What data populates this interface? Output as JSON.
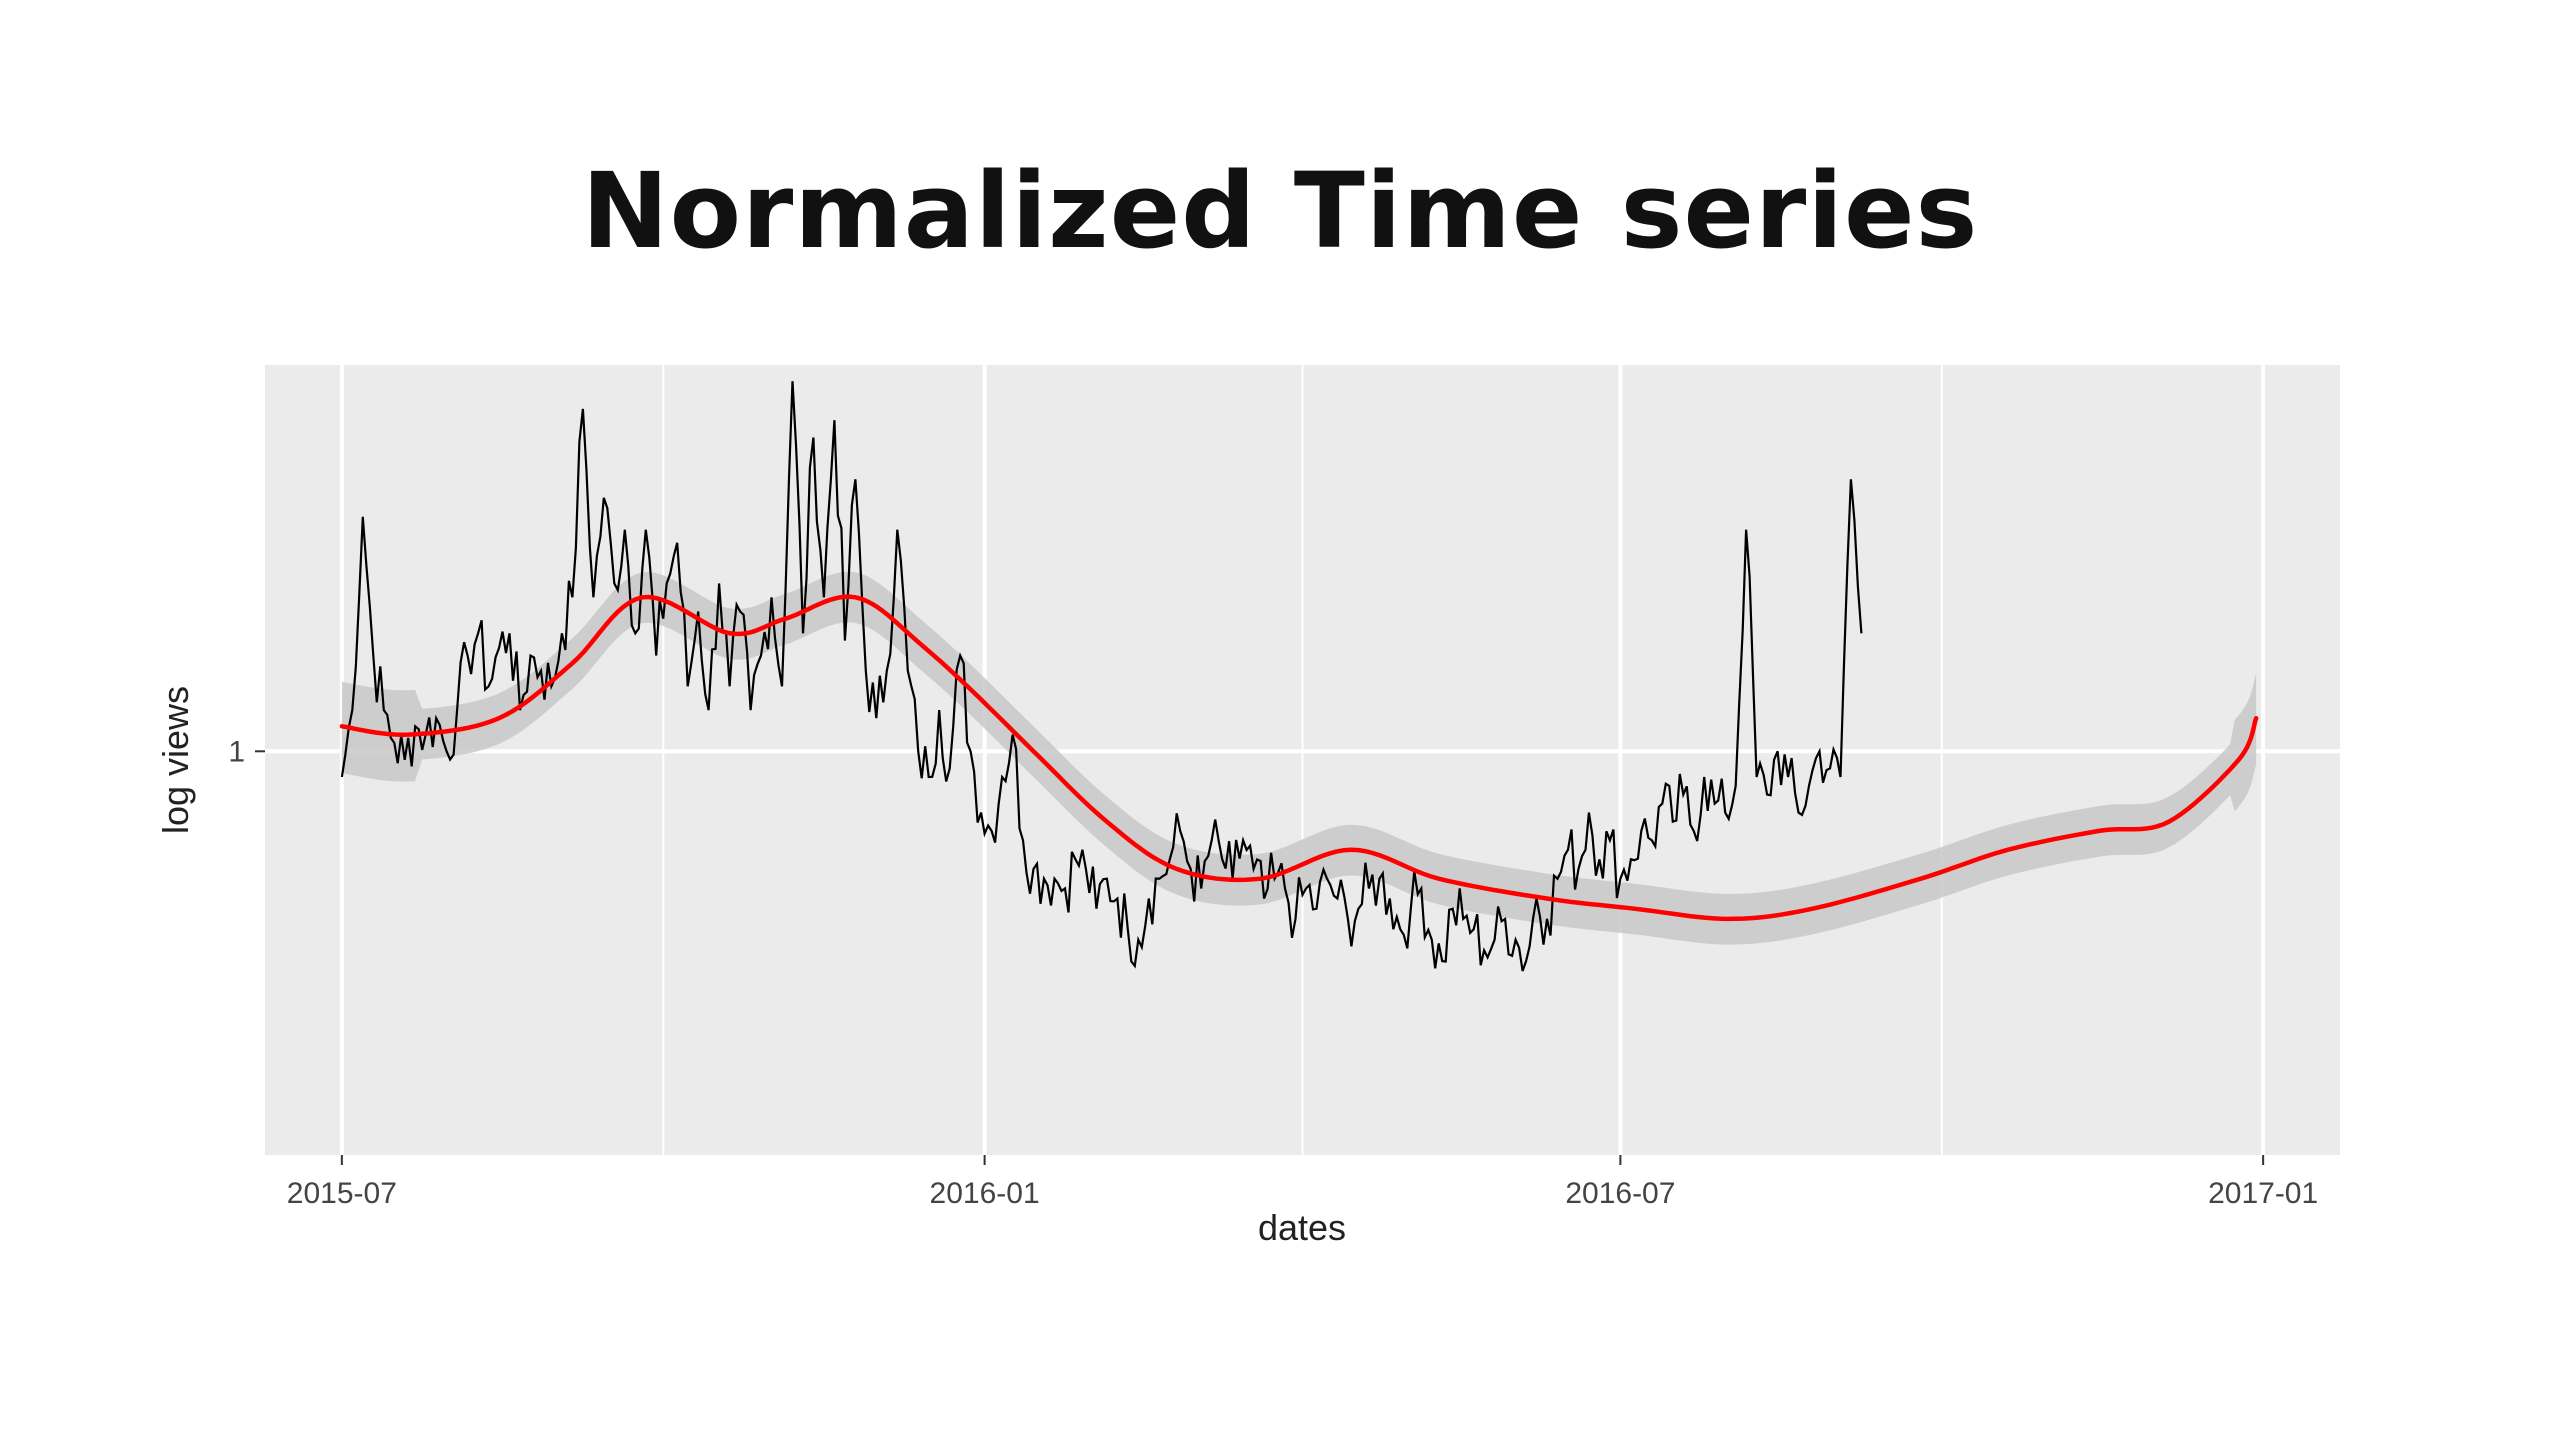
{
  "slide": {
    "title": "Normalized Time series"
  },
  "colors": {
    "panel": "#ebebeb",
    "grid": "#ffffff",
    "series": "#000000",
    "smooth": "#ff0000",
    "ribbon": "#c8c8c8"
  },
  "chart_data": {
    "type": "line",
    "title": "",
    "xlabel": "dates",
    "ylabel": "log views",
    "x_ticks": [
      "2015-07",
      "2016-01",
      "2016-07",
      "2017-01"
    ],
    "y_ticks": [
      "1"
    ],
    "xlim": [
      "2015-06-09",
      "2017-01-23"
    ],
    "y_scale": "log",
    "ylim": [
      0.62,
      1.58
    ],
    "grid": true,
    "legend": "none",
    "series": [
      {
        "kind": "daily-raw",
        "x_start": "2015-07-01",
        "x_step_days": 3,
        "values": [
          0.97,
          1.05,
          1.32,
          1.12,
          1.05,
          1.01,
          0.99,
          1.03,
          1.02,
          1.04,
          1.0,
          1.05,
          1.12,
          1.15,
          1.08,
          1.13,
          1.15,
          1.05,
          1.12,
          1.1,
          1.08,
          1.15,
          1.2,
          1.5,
          1.2,
          1.35,
          1.22,
          1.3,
          1.15,
          1.3,
          1.12,
          1.22,
          1.28,
          1.08,
          1.18,
          1.05,
          1.22,
          1.08,
          1.18,
          1.05,
          1.12,
          1.2,
          1.08,
          1.55,
          1.15,
          1.45,
          1.2,
          1.48,
          1.14,
          1.38,
          1.1,
          1.04,
          1.1,
          1.3,
          1.1,
          1.0,
          0.97,
          1.05,
          0.98,
          1.12,
          1.0,
          0.93,
          0.91,
          0.97,
          1.02,
          0.9,
          0.87,
          0.86,
          0.86,
          0.85,
          0.88,
          0.87,
          0.83,
          0.86,
          0.84,
          0.81,
          0.8,
          0.84,
          0.86,
          0.88,
          0.91,
          0.87,
          0.85,
          0.9,
          0.88,
          0.86,
          0.9,
          0.87,
          0.84,
          0.86,
          0.85,
          0.82,
          0.85,
          0.83,
          0.86,
          0.84,
          0.82,
          0.83,
          0.85,
          0.86,
          0.84,
          0.81,
          0.83,
          0.85,
          0.8,
          0.78,
          0.83,
          0.82,
          0.81,
          0.79,
          0.8,
          0.82,
          0.8,
          0.78,
          0.84,
          0.82,
          0.86,
          0.89,
          0.87,
          0.93,
          0.88,
          0.9,
          0.86,
          0.88,
          0.91,
          0.9,
          0.94,
          0.92,
          0.95,
          0.91,
          0.97,
          0.94,
          0.93,
          0.96,
          1.3,
          0.97,
          0.95,
          1.0,
          0.97,
          0.93,
          0.96,
          1.0,
          0.98,
          0.97,
          1.38,
          1.15
        ]
      },
      {
        "kind": "loess-smooth",
        "x": [
          "2015-07-01",
          "2015-07-20",
          "2015-08-15",
          "2015-09-05",
          "2015-09-25",
          "2015-10-20",
          "2015-11-05",
          "2015-11-25",
          "2015-12-15",
          "2016-01-15",
          "2016-02-05",
          "2016-02-25",
          "2016-03-20",
          "2016-04-15",
          "2016-05-10",
          "2016-06-10",
          "2016-07-05",
          "2016-08-01",
          "2016-08-25",
          "2016-09-25",
          "2016-10-20",
          "2016-11-15",
          "2016-12-05",
          "2016-12-25",
          "2016-12-30"
        ],
        "values": [
          1.03,
          1.02,
          1.04,
          1.11,
          1.2,
          1.15,
          1.17,
          1.2,
          1.13,
          1.0,
          0.92,
          0.87,
          0.86,
          0.89,
          0.86,
          0.84,
          0.83,
          0.82,
          0.83,
          0.86,
          0.89,
          0.91,
          0.92,
          0.99,
          1.04
        ],
        "ribbon_width_pct": 3
      }
    ]
  }
}
